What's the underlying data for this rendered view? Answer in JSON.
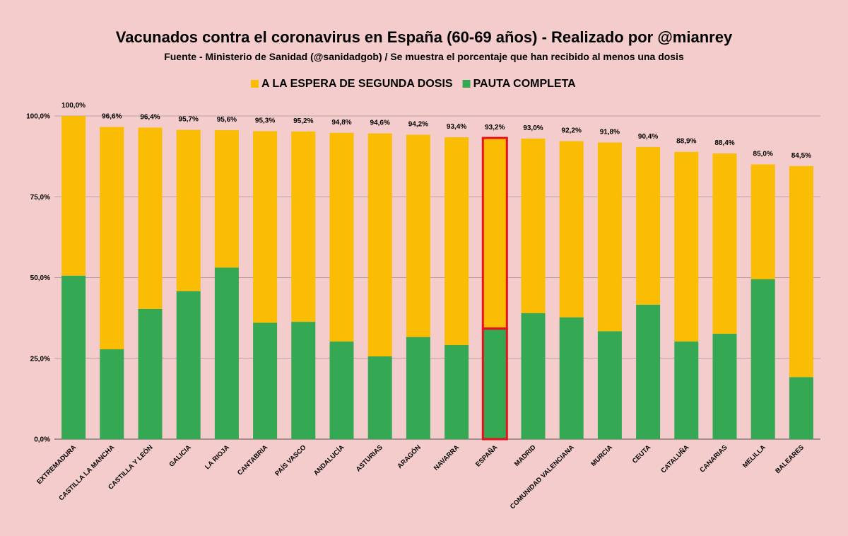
{
  "chart_data": {
    "type": "bar",
    "stacked": true,
    "title": "Vacunados contra el coronavirus en España (60-69 años) - Realizado por @mianrey",
    "subtitle": "Fuente - Ministerio de Sanidad (@sanidadgob) / Se muestra el porcentaje que han recibido al menos una dosis",
    "legend_position": "top",
    "grid": true,
    "ylim": [
      0,
      100
    ],
    "yticks": [
      "0,0%",
      "25,0%",
      "50,0%",
      "75,0%",
      "100,0%"
    ],
    "categories": [
      "EXTREMADURA",
      "CASTILLA LA MANCHA",
      "CASTILLA Y LEÓN",
      "GALICIA",
      "LA RIOJA",
      "CANTABRIA",
      "PAÍS VASCO",
      "ANDALUCÍA",
      "ASTURIAS",
      "ARAGÓN",
      "NAVARRA",
      "ESPAÑA",
      "MADRID",
      "COMUNIDAD VALENCIANA",
      "MURCIA",
      "CEUTA",
      "CATALUÑA",
      "CANARIAS",
      "MELILLA",
      "BALEARES"
    ],
    "series": [
      {
        "name": "PAUTA COMPLETA",
        "color": "#34a853",
        "values": [
          50.6,
          27.8,
          40.3,
          45.8,
          53.1,
          36.0,
          36.3,
          30.2,
          25.6,
          31.6,
          29.1,
          34.2,
          39.0,
          37.7,
          33.4,
          41.6,
          30.2,
          32.6,
          49.5,
          19.2
        ]
      },
      {
        "name": "A LA ESPERA DE SEGUNDA DOSIS",
        "color": "#fbbc04",
        "values": [
          49.4,
          68.8,
          56.1,
          49.9,
          42.5,
          59.3,
          58.9,
          64.6,
          69.0,
          62.6,
          64.3,
          59.0,
          54.0,
          54.5,
          58.4,
          48.8,
          58.7,
          55.8,
          35.5,
          65.3
        ]
      }
    ],
    "legend_order": [
      "A LA ESPERA DE SEGUNDA DOSIS",
      "PAUTA COMPLETA"
    ],
    "total_labels": [
      "100,0%",
      "96,6%",
      "96,4%",
      "95,7%",
      "95,6%",
      "95,3%",
      "95,2%",
      "94,8%",
      "94,6%",
      "94,2%",
      "93,4%",
      "93,2%",
      "93,0%",
      "92,2%",
      "91,8%",
      "90,4%",
      "88,9%",
      "88,4%",
      "85,0%",
      "84,5%"
    ],
    "highlight_category": "ESPAÑA",
    "highlight_color": "#e8121b"
  }
}
